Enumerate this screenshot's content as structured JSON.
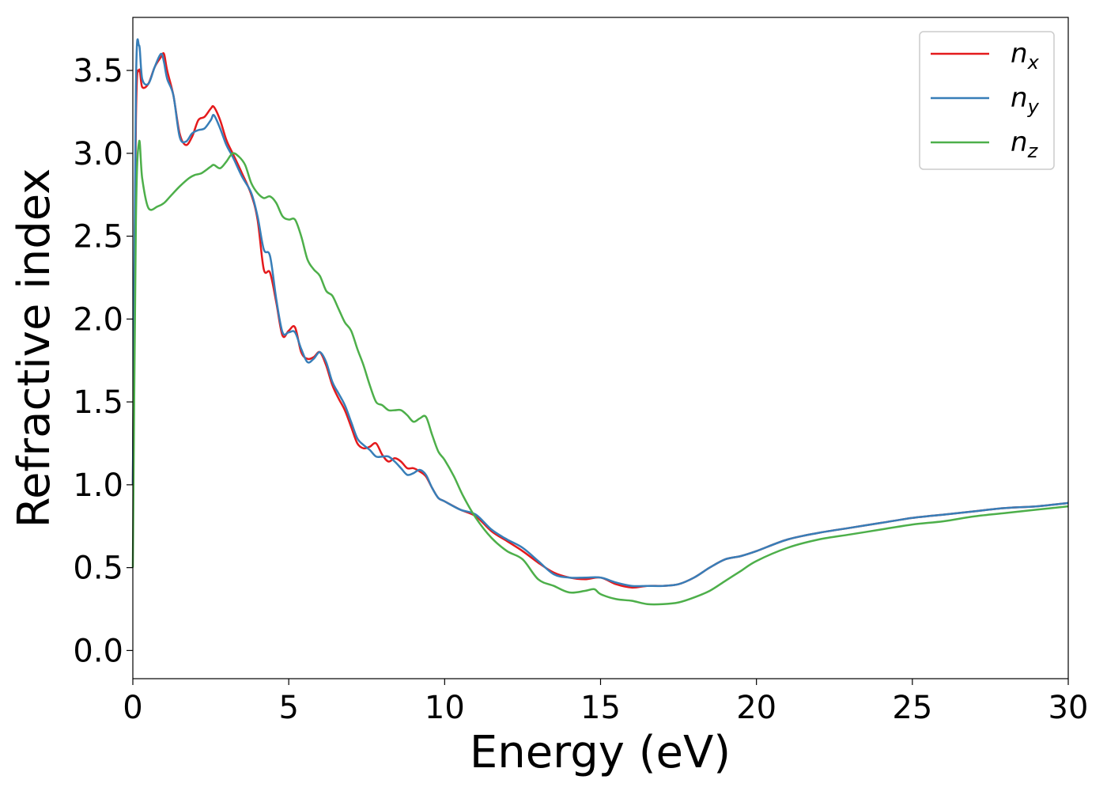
{
  "chart_data": {
    "type": "line",
    "xlabel": "Energy (eV)",
    "ylabel": "Refractive index",
    "xlim": [
      0,
      30
    ],
    "ylim": [
      -0.17,
      3.82
    ],
    "grid": false,
    "legend_position": "top-right",
    "x_ticks": [
      0,
      5,
      10,
      15,
      20,
      25,
      30
    ],
    "x_tick_labels": [
      "0",
      "5",
      "10",
      "15",
      "20",
      "25",
      "30"
    ],
    "y_ticks": [
      0.0,
      0.5,
      1.0,
      1.5,
      2.0,
      2.5,
      3.0,
      3.5
    ],
    "y_tick_labels": [
      "0.0",
      "0.5",
      "1.0",
      "1.5",
      "2.0",
      "2.5",
      "3.0",
      "3.5"
    ],
    "series": [
      {
        "name": "n_x",
        "legend_base": "n",
        "legend_sub": "x",
        "color": "#e41a1c",
        "x": [
          0,
          0.1,
          0.2,
          0.3,
          0.5,
          0.7,
          0.9,
          1.0,
          1.1,
          1.3,
          1.5,
          1.7,
          1.9,
          2.1,
          2.3,
          2.5,
          2.6,
          2.8,
          3.0,
          3.2,
          3.5,
          3.8,
          4.0,
          4.2,
          4.4,
          4.6,
          4.8,
          5.0,
          5.2,
          5.4,
          5.6,
          5.8,
          6.0,
          6.2,
          6.4,
          6.6,
          6.8,
          7.0,
          7.2,
          7.4,
          7.6,
          7.8,
          8.0,
          8.2,
          8.4,
          8.6,
          8.8,
          9.0,
          9.2,
          9.4,
          9.6,
          9.8,
          10.0,
          10.5,
          11.0,
          11.5,
          12.0,
          12.5,
          13.0,
          13.5,
          14.0,
          14.5,
          15.0,
          15.5,
          16.0,
          16.5,
          17.0,
          17.5,
          18.0,
          18.5,
          19.0,
          19.5,
          20.0,
          21.0,
          22.0,
          23.0,
          24.0,
          25.0,
          26.0,
          27.0,
          28.0,
          29.0,
          30.0
        ],
        "y": [
          1.0,
          3.2,
          3.5,
          3.4,
          3.42,
          3.52,
          3.58,
          3.6,
          3.5,
          3.35,
          3.12,
          3.05,
          3.1,
          3.2,
          3.22,
          3.27,
          3.28,
          3.2,
          3.08,
          3.0,
          2.88,
          2.75,
          2.6,
          2.3,
          2.28,
          2.1,
          1.9,
          1.93,
          1.95,
          1.8,
          1.76,
          1.77,
          1.8,
          1.72,
          1.6,
          1.52,
          1.45,
          1.35,
          1.25,
          1.22,
          1.23,
          1.25,
          1.18,
          1.14,
          1.16,
          1.14,
          1.1,
          1.1,
          1.08,
          1.05,
          0.98,
          0.92,
          0.9,
          0.85,
          0.81,
          0.72,
          0.66,
          0.6,
          0.53,
          0.47,
          0.44,
          0.43,
          0.44,
          0.4,
          0.38,
          0.39,
          0.39,
          0.4,
          0.44,
          0.5,
          0.55,
          0.57,
          0.6,
          0.67,
          0.71,
          0.74,
          0.77,
          0.8,
          0.82,
          0.84,
          0.86,
          0.87,
          0.89
        ]
      },
      {
        "name": "n_y",
        "legend_base": "n",
        "legend_sub": "y",
        "color": "#377eb8",
        "x": [
          0,
          0.1,
          0.2,
          0.3,
          0.5,
          0.7,
          0.9,
          1.0,
          1.1,
          1.3,
          1.5,
          1.7,
          1.9,
          2.1,
          2.3,
          2.5,
          2.6,
          2.8,
          3.0,
          3.2,
          3.5,
          3.8,
          4.0,
          4.2,
          4.4,
          4.6,
          4.8,
          5.0,
          5.2,
          5.4,
          5.6,
          5.8,
          6.0,
          6.2,
          6.4,
          6.6,
          6.8,
          7.0,
          7.2,
          7.4,
          7.6,
          7.8,
          8.0,
          8.2,
          8.4,
          8.6,
          8.8,
          9.0,
          9.2,
          9.4,
          9.6,
          9.8,
          10.0,
          10.5,
          11.0,
          11.5,
          12.0,
          12.5,
          13.0,
          13.5,
          14.0,
          14.5,
          15.0,
          15.5,
          16.0,
          16.5,
          17.0,
          17.5,
          18.0,
          18.5,
          19.0,
          19.5,
          20.0,
          21.0,
          22.0,
          23.0,
          24.0,
          25.0,
          26.0,
          27.0,
          28.0,
          29.0,
          30.0
        ],
        "y": [
          1.0,
          3.4,
          3.65,
          3.45,
          3.42,
          3.52,
          3.6,
          3.55,
          3.45,
          3.35,
          3.1,
          3.07,
          3.12,
          3.14,
          3.15,
          3.2,
          3.23,
          3.15,
          3.05,
          2.98,
          2.86,
          2.76,
          2.62,
          2.42,
          2.38,
          2.12,
          1.92,
          1.92,
          1.92,
          1.82,
          1.74,
          1.76,
          1.8,
          1.74,
          1.62,
          1.55,
          1.48,
          1.38,
          1.28,
          1.24,
          1.21,
          1.17,
          1.17,
          1.17,
          1.14,
          1.1,
          1.06,
          1.07,
          1.09,
          1.06,
          0.98,
          0.92,
          0.9,
          0.85,
          0.82,
          0.73,
          0.67,
          0.62,
          0.54,
          0.46,
          0.44,
          0.44,
          0.44,
          0.41,
          0.39,
          0.39,
          0.39,
          0.4,
          0.44,
          0.5,
          0.55,
          0.57,
          0.6,
          0.67,
          0.71,
          0.74,
          0.77,
          0.8,
          0.82,
          0.84,
          0.86,
          0.87,
          0.89
        ]
      },
      {
        "name": "n_z",
        "legend_base": "n",
        "legend_sub": "z",
        "color": "#4daf4a",
        "x": [
          0,
          0.1,
          0.2,
          0.3,
          0.5,
          0.8,
          1.0,
          1.2,
          1.5,
          1.8,
          2.0,
          2.2,
          2.5,
          2.6,
          2.8,
          3.0,
          3.2,
          3.4,
          3.6,
          3.8,
          4.0,
          4.2,
          4.4,
          4.6,
          4.8,
          5.0,
          5.2,
          5.4,
          5.6,
          5.8,
          6.0,
          6.2,
          6.4,
          6.6,
          6.8,
          7.0,
          7.2,
          7.4,
          7.6,
          7.8,
          8.0,
          8.2,
          8.4,
          8.6,
          8.8,
          9.0,
          9.2,
          9.4,
          9.6,
          9.8,
          10.0,
          10.3,
          10.6,
          11.0,
          11.5,
          12.0,
          12.5,
          13.0,
          13.5,
          14.0,
          14.5,
          14.8,
          15.0,
          15.5,
          16.0,
          16.5,
          17.0,
          17.5,
          18.0,
          18.5,
          19.0,
          19.5,
          20.0,
          21.0,
          22.0,
          23.0,
          24.0,
          25.0,
          26.0,
          27.0,
          28.0,
          29.0,
          30.0
        ],
        "y": [
          0.5,
          2.6,
          3.07,
          2.85,
          2.67,
          2.68,
          2.7,
          2.74,
          2.8,
          2.85,
          2.87,
          2.88,
          2.92,
          2.93,
          2.91,
          2.95,
          3.0,
          2.98,
          2.93,
          2.82,
          2.76,
          2.73,
          2.74,
          2.7,
          2.62,
          2.6,
          2.6,
          2.5,
          2.36,
          2.3,
          2.26,
          2.17,
          2.14,
          2.06,
          1.98,
          1.93,
          1.82,
          1.72,
          1.6,
          1.5,
          1.48,
          1.45,
          1.45,
          1.45,
          1.42,
          1.38,
          1.4,
          1.41,
          1.3,
          1.2,
          1.15,
          1.05,
          0.93,
          0.8,
          0.68,
          0.6,
          0.55,
          0.43,
          0.39,
          0.35,
          0.36,
          0.37,
          0.34,
          0.31,
          0.3,
          0.28,
          0.28,
          0.29,
          0.32,
          0.36,
          0.42,
          0.48,
          0.54,
          0.62,
          0.67,
          0.7,
          0.73,
          0.76,
          0.78,
          0.81,
          0.83,
          0.85,
          0.87
        ]
      }
    ]
  }
}
